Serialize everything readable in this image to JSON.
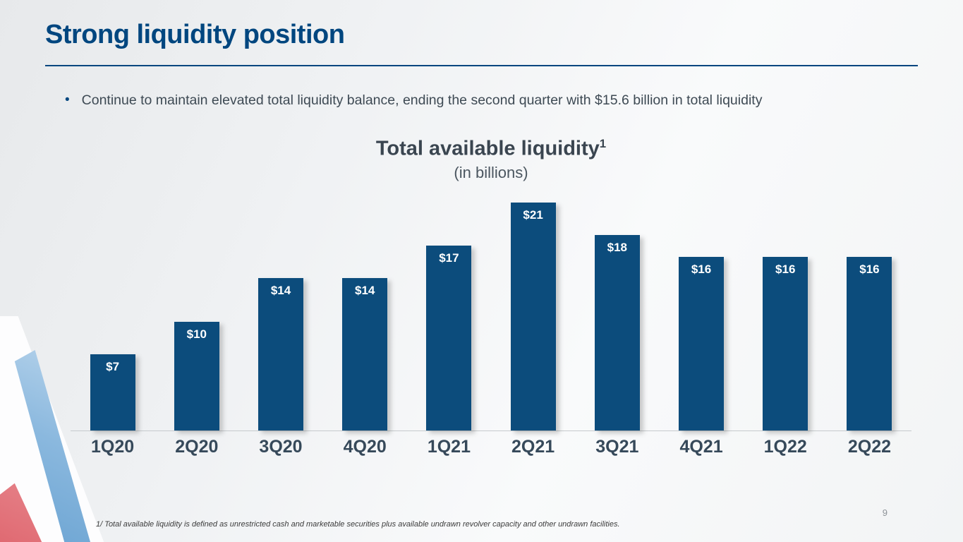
{
  "slide": {
    "title": "Strong liquidity position",
    "bullet_marker": "•",
    "bullet": "Continue to maintain elevated total liquidity balance, ending the second quarter with $15.6 billion in total liquidity",
    "footnote": "1/ Total available liquidity is defined as unrestricted cash and marketable securities plus available undrawn revolver capacity and other undrawn facilities.",
    "page_number": "9"
  },
  "chart_data": {
    "type": "bar",
    "title": "Total available liquidity",
    "title_superscript": "1",
    "subtitle": "(in billions)",
    "categories": [
      "1Q20",
      "2Q20",
      "3Q20",
      "4Q20",
      "1Q21",
      "2Q21",
      "3Q21",
      "4Q21",
      "1Q22",
      "2Q22"
    ],
    "values": [
      7,
      10,
      14,
      14,
      17,
      21,
      18,
      16,
      16,
      16
    ],
    "value_labels": [
      "$7",
      "$10",
      "$14",
      "$14",
      "$17",
      "$21",
      "$18",
      "$16",
      "$16",
      "$16"
    ],
    "ylim": [
      0,
      21.5
    ],
    "grid": false,
    "legend": false,
    "bar_color": "#0c4c7c",
    "value_label_color": "#ffffff",
    "xlabel": "",
    "ylabel": ""
  },
  "colors": {
    "brand_blue": "#00467f",
    "bar_blue": "#0c4c7c",
    "axis_label": "#36495a",
    "body_text": "#3e4a54"
  }
}
